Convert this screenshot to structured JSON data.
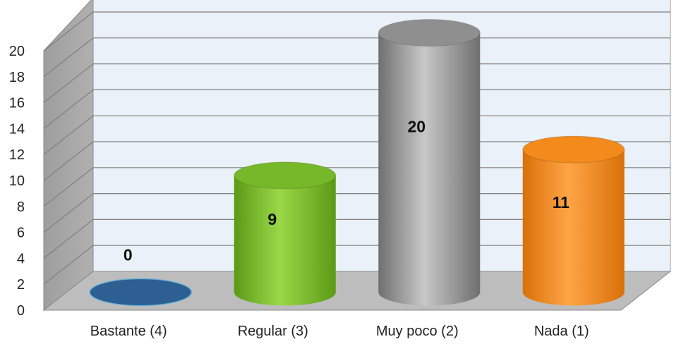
{
  "chart_data": {
    "type": "bar",
    "title": "",
    "xlabel": "",
    "ylabel": "",
    "categories": [
      "Bastante (4)",
      "Regular (3)",
      "Muy poco (2)",
      "Nada (1)"
    ],
    "values": [
      0,
      9,
      20,
      11
    ],
    "data_labels": [
      "0",
      "9",
      "20",
      "11"
    ],
    "ylim": [
      0,
      20
    ],
    "y_ticks": [
      "0",
      "2",
      "4",
      "6",
      "8",
      "10",
      "12",
      "14",
      "16",
      "18",
      "20"
    ],
    "grid": true,
    "legend": "none",
    "style": "3d-cylinder",
    "colors": [
      "#2e5f93",
      "#76b82a",
      "#8f8f8f",
      "#f28a1c"
    ],
    "wall_color": "#eaf1f8",
    "floor_color": "#bdbdbd",
    "side_wall_color": "#b0b0b0"
  }
}
